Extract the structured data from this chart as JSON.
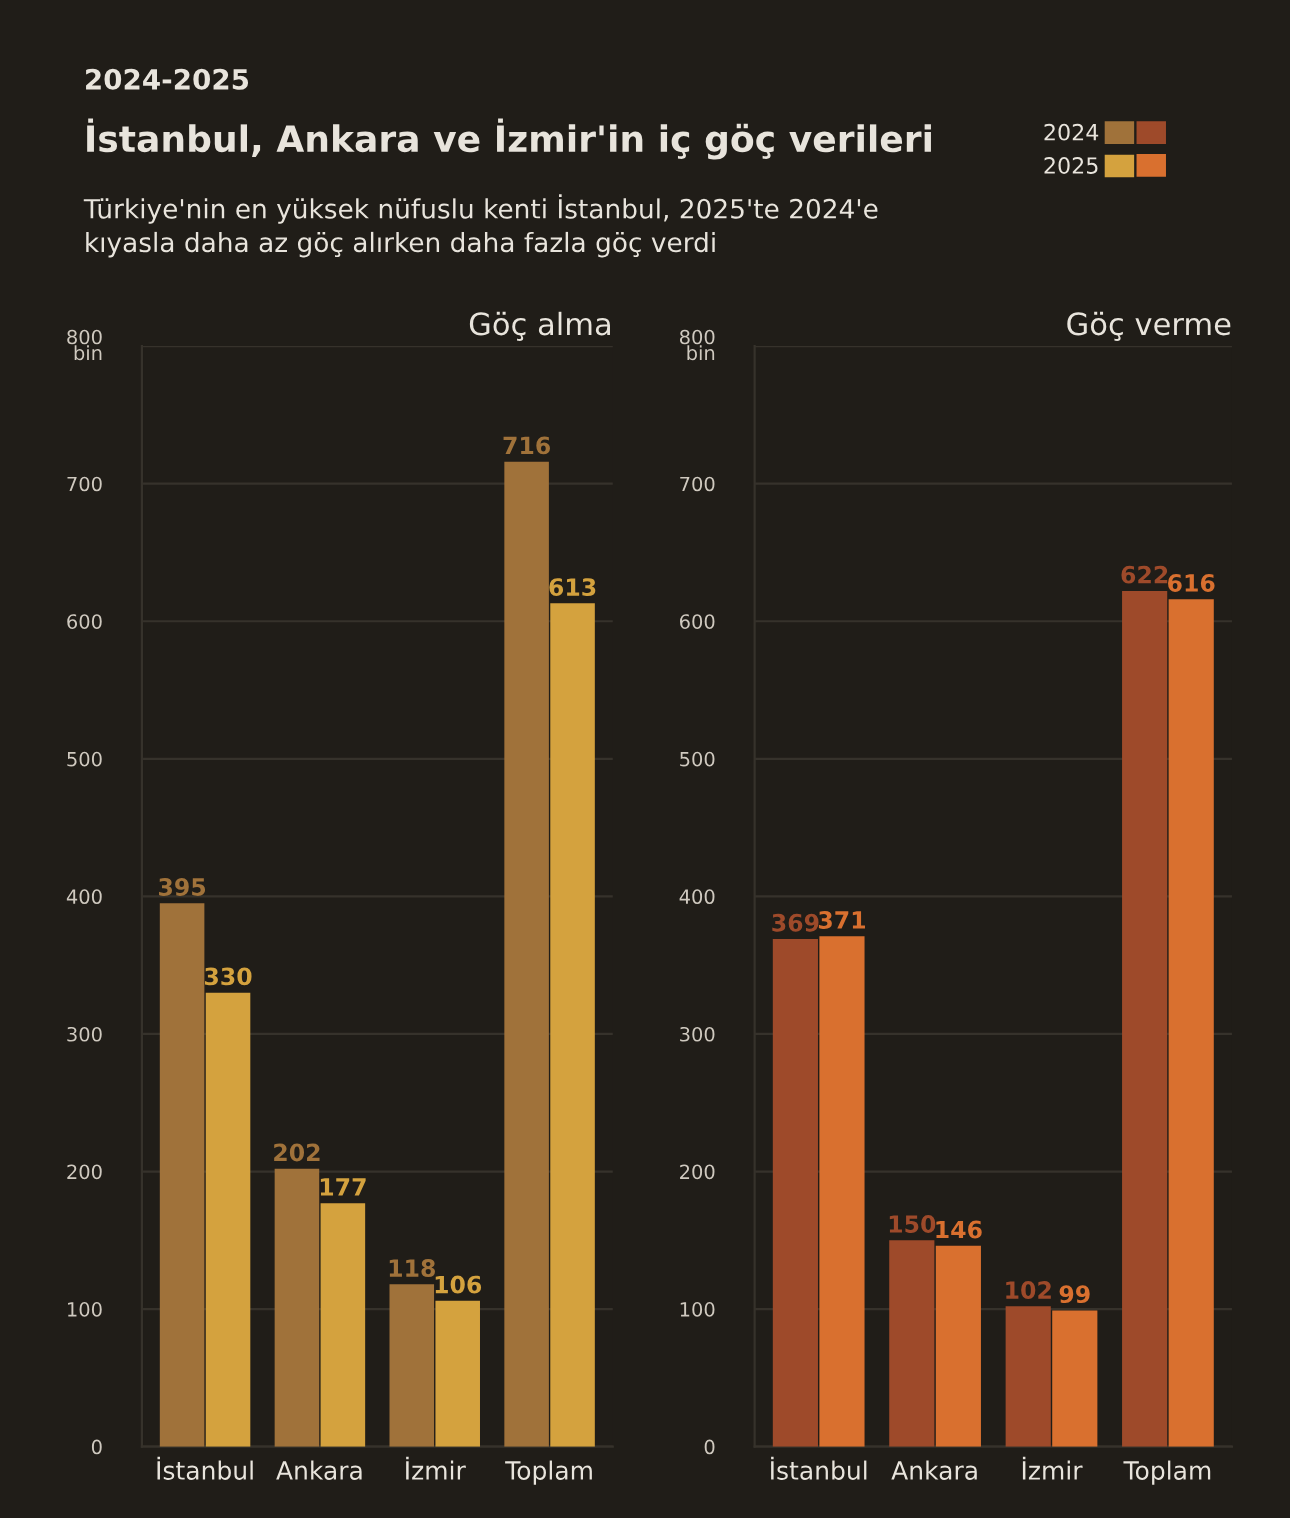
{
  "chart_data": [
    {
      "type": "bar",
      "title": "Göç alma",
      "annotations": [
        "2024-2025",
        "İstanbul, Ankara ve İzmir'in iç göç verileri",
        "Türkiye'nin en yüksek nüfuslu kenti İstanbul, 2025'te 2024'e\nkıyasla daha az göç alırken daha fazla göç verdi"
      ],
      "categories": [
        "İstanbul",
        "Ankara",
        "İzmir",
        "Toplam"
      ],
      "series": [
        {
          "name": "2024",
          "color": "#a0723a",
          "values": [
            395,
            202,
            118,
            716
          ]
        },
        {
          "name": "2025",
          "color": "#d4a23e",
          "values": [
            330,
            177,
            106,
            613
          ]
        }
      ],
      "ylim": [
        0,
        800
      ],
      "yticks": [
        0,
        100,
        200,
        300,
        400,
        500,
        600,
        700,
        {
          "value": 800,
          "label": "800\nbin"
        }
      ],
      "grid": "y",
      "data_labels": true,
      "legend": "top right"
    },
    {
      "type": "bar",
      "title": "Göç verme",
      "categories": [
        "İstanbul",
        "Ankara",
        "İzmir",
        "Toplam"
      ],
      "series": [
        {
          "color": "#9e4a2a",
          "values": [
            369,
            150,
            102,
            622
          ]
        },
        {
          "color": "#d9702f",
          "values": [
            371,
            146,
            99,
            616
          ]
        }
      ],
      "ylim": [
        0,
        800
      ],
      "yticks": [
        0,
        100,
        200,
        300,
        400,
        500,
        600,
        700,
        {
          "value": 800,
          "label": "800\nbin"
        }
      ],
      "grid": "y",
      "data_labels": true
    }
  ]
}
